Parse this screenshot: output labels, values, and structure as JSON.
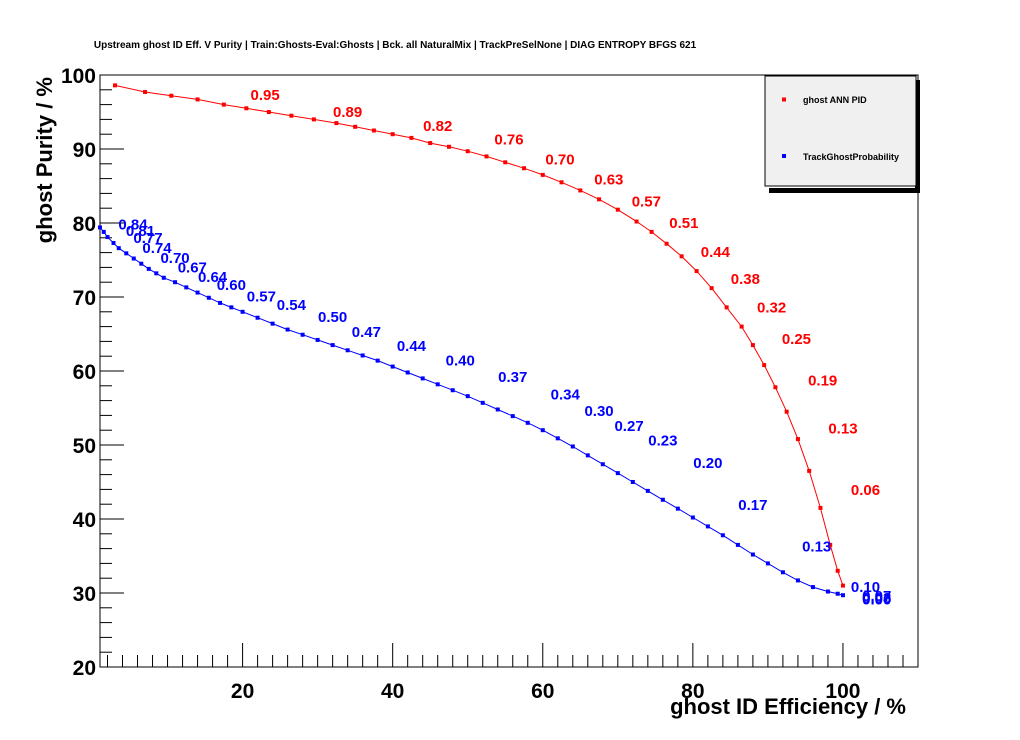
{
  "chart_data": {
    "type": "scatter",
    "title": "Upstream ghost ID Eff. V Purity | Train:Ghosts-Eval:Ghosts | Bck. all NaturalMix | TrackPreSelNone | DIAG ENTROPY BFGS 621",
    "xlabel": "ghost ID Efficiency / %",
    "ylabel": "ghost Purity / %",
    "xlim": [
      1,
      110
    ],
    "ylim": [
      20,
      100
    ],
    "x_ticks": [
      20,
      40,
      60,
      80,
      100
    ],
    "y_ticks": [
      20,
      30,
      40,
      50,
      60,
      70,
      80,
      90,
      100
    ],
    "grid": false,
    "legend_position": "top-right",
    "colors": {
      "ghost_ann_pid": "#ff0000",
      "track_ghost_probability": "#0000ff"
    },
    "series": [
      {
        "name": "ghost ANN PID",
        "color": "#ff0000",
        "points": [
          [
            3.0,
            98.6
          ],
          [
            7.0,
            97.7
          ],
          [
            10.5,
            97.2
          ],
          [
            14.0,
            96.7
          ],
          [
            17.5,
            96.0
          ],
          [
            20.5,
            95.5
          ],
          [
            23.5,
            95.0
          ],
          [
            26.5,
            94.5
          ],
          [
            29.5,
            94.0
          ],
          [
            32.5,
            93.5
          ],
          [
            35.0,
            93.0
          ],
          [
            37.5,
            92.5
          ],
          [
            40.0,
            92.0
          ],
          [
            42.5,
            91.5
          ],
          [
            45.0,
            90.8
          ],
          [
            47.5,
            90.3
          ],
          [
            50.0,
            89.7
          ],
          [
            52.5,
            89.0
          ],
          [
            55.0,
            88.2
          ],
          [
            57.5,
            87.4
          ],
          [
            60.0,
            86.5
          ],
          [
            62.5,
            85.5
          ],
          [
            65.0,
            84.4
          ],
          [
            67.5,
            83.2
          ],
          [
            70.0,
            81.8
          ],
          [
            72.5,
            80.2
          ],
          [
            74.5,
            78.8
          ],
          [
            76.5,
            77.2
          ],
          [
            78.5,
            75.5
          ],
          [
            80.5,
            73.5
          ],
          [
            82.5,
            71.2
          ],
          [
            84.5,
            68.6
          ],
          [
            86.5,
            66.0
          ],
          [
            88.0,
            63.5
          ],
          [
            89.5,
            60.8
          ],
          [
            91.0,
            57.8
          ],
          [
            92.5,
            54.5
          ],
          [
            94.0,
            50.8
          ],
          [
            95.5,
            46.5
          ],
          [
            97.0,
            41.5
          ],
          [
            98.3,
            36.5
          ],
          [
            99.3,
            33.0
          ],
          [
            100.0,
            31.0
          ]
        ]
      },
      {
        "name": "TrackGhostProbability",
        "color": "#0000ff",
        "points": [
          [
            1.0,
            79.4
          ],
          [
            1.5,
            78.8
          ],
          [
            2.0,
            78.1
          ],
          [
            2.8,
            77.3
          ],
          [
            3.5,
            76.6
          ],
          [
            4.5,
            75.9
          ],
          [
            5.5,
            75.2
          ],
          [
            6.5,
            74.5
          ],
          [
            7.5,
            73.8
          ],
          [
            8.5,
            73.2
          ],
          [
            9.5,
            72.6
          ],
          [
            11.0,
            72.0
          ],
          [
            12.5,
            71.3
          ],
          [
            14.0,
            70.6
          ],
          [
            15.5,
            69.9
          ],
          [
            17.0,
            69.2
          ],
          [
            18.5,
            68.6
          ],
          [
            20.0,
            68.0
          ],
          [
            22.0,
            67.2
          ],
          [
            24.0,
            66.4
          ],
          [
            26.0,
            65.6
          ],
          [
            28.0,
            64.9
          ],
          [
            30.0,
            64.2
          ],
          [
            32.0,
            63.5
          ],
          [
            34.0,
            62.8
          ],
          [
            36.0,
            62.1
          ],
          [
            38.0,
            61.4
          ],
          [
            40.0,
            60.6
          ],
          [
            42.0,
            59.8
          ],
          [
            44.0,
            59.0
          ],
          [
            46.0,
            58.2
          ],
          [
            48.0,
            57.4
          ],
          [
            50.0,
            56.6
          ],
          [
            52.0,
            55.7
          ],
          [
            54.0,
            54.8
          ],
          [
            56.0,
            53.9
          ],
          [
            58.0,
            53.0
          ],
          [
            60.0,
            52.0
          ],
          [
            62.0,
            50.9
          ],
          [
            64.0,
            49.8
          ],
          [
            66.0,
            48.6
          ],
          [
            68.0,
            47.4
          ],
          [
            70.0,
            46.2
          ],
          [
            72.0,
            45.0
          ],
          [
            74.0,
            43.8
          ],
          [
            76.0,
            42.6
          ],
          [
            78.0,
            41.4
          ],
          [
            80.0,
            40.2
          ],
          [
            82.0,
            39.0
          ],
          [
            84.0,
            37.8
          ],
          [
            86.0,
            36.5
          ],
          [
            88.0,
            35.2
          ],
          [
            90.0,
            34.0
          ],
          [
            92.0,
            32.8
          ],
          [
            94.0,
            31.7
          ],
          [
            96.0,
            30.8
          ],
          [
            98.0,
            30.2
          ],
          [
            99.3,
            29.9
          ],
          [
            100.0,
            29.7
          ]
        ]
      }
    ],
    "annotations": [
      {
        "series": 0,
        "text": "0.95",
        "x": 23.0,
        "y": 97.3
      },
      {
        "series": 0,
        "text": "0.89",
        "x": 34.0,
        "y": 95.0
      },
      {
        "series": 0,
        "text": "0.82",
        "x": 46.0,
        "y": 93.1
      },
      {
        "series": 0,
        "text": "0.76",
        "x": 55.5,
        "y": 91.3
      },
      {
        "series": 0,
        "text": "0.70",
        "x": 62.3,
        "y": 88.6
      },
      {
        "series": 0,
        "text": "0.63",
        "x": 68.8,
        "y": 85.9
      },
      {
        "series": 0,
        "text": "0.57",
        "x": 73.8,
        "y": 82.9
      },
      {
        "series": 0,
        "text": "0.51",
        "x": 78.8,
        "y": 80.0
      },
      {
        "series": 0,
        "text": "0.44",
        "x": 83.0,
        "y": 76.1
      },
      {
        "series": 0,
        "text": "0.38",
        "x": 87.0,
        "y": 72.4
      },
      {
        "series": 0,
        "text": "0.32",
        "x": 90.5,
        "y": 68.6
      },
      {
        "series": 0,
        "text": "0.25",
        "x": 93.8,
        "y": 64.3
      },
      {
        "series": 0,
        "text": "0.19",
        "x": 97.3,
        "y": 58.7
      },
      {
        "series": 0,
        "text": "0.13",
        "x": 100.0,
        "y": 52.2
      },
      {
        "series": 0,
        "text": "0.06",
        "x": 103.0,
        "y": 43.9
      },
      {
        "series": 1,
        "text": "0.84",
        "x": 5.4,
        "y": 79.8
      },
      {
        "series": 1,
        "text": "0.81",
        "x": 6.4,
        "y": 78.9
      },
      {
        "series": 1,
        "text": "0.77",
        "x": 7.4,
        "y": 78.0
      },
      {
        "series": 1,
        "text": "0.74",
        "x": 8.6,
        "y": 76.6
      },
      {
        "series": 1,
        "text": "0.70",
        "x": 11.0,
        "y": 75.3
      },
      {
        "series": 1,
        "text": "0.67",
        "x": 13.3,
        "y": 74.0
      },
      {
        "series": 1,
        "text": "0.64",
        "x": 16.0,
        "y": 72.7
      },
      {
        "series": 1,
        "text": "0.60",
        "x": 18.5,
        "y": 71.6
      },
      {
        "series": 1,
        "text": "0.57",
        "x": 22.5,
        "y": 70.1
      },
      {
        "series": 1,
        "text": "0.54",
        "x": 26.5,
        "y": 68.9
      },
      {
        "series": 1,
        "text": "0.50",
        "x": 32.0,
        "y": 67.3
      },
      {
        "series": 1,
        "text": "0.47",
        "x": 36.5,
        "y": 65.3
      },
      {
        "series": 1,
        "text": "0.44",
        "x": 42.5,
        "y": 63.4
      },
      {
        "series": 1,
        "text": "0.40",
        "x": 49.0,
        "y": 61.4
      },
      {
        "series": 1,
        "text": "0.37",
        "x": 56.0,
        "y": 59.2
      },
      {
        "series": 1,
        "text": "0.34",
        "x": 63.0,
        "y": 56.8
      },
      {
        "series": 1,
        "text": "0.30",
        "x": 67.5,
        "y": 54.6
      },
      {
        "series": 1,
        "text": "0.27",
        "x": 71.5,
        "y": 52.6
      },
      {
        "series": 1,
        "text": "0.23",
        "x": 76.0,
        "y": 50.6
      },
      {
        "series": 1,
        "text": "0.20",
        "x": 82.0,
        "y": 47.6
      },
      {
        "series": 1,
        "text": "0.17",
        "x": 88.0,
        "y": 41.9
      },
      {
        "series": 1,
        "text": "0.13",
        "x": 96.5,
        "y": 36.3
      },
      {
        "series": 1,
        "text": "0.10",
        "x": 103.0,
        "y": 30.8
      },
      {
        "series": 1,
        "text": "0.07",
        "x": 104.5,
        "y": 29.6
      },
      {
        "series": 1,
        "text": "0.03",
        "x": 104.5,
        "y": 29.3
      },
      {
        "series": 1,
        "text": "0.00",
        "x": 104.5,
        "y": 29.1
      }
    ]
  }
}
